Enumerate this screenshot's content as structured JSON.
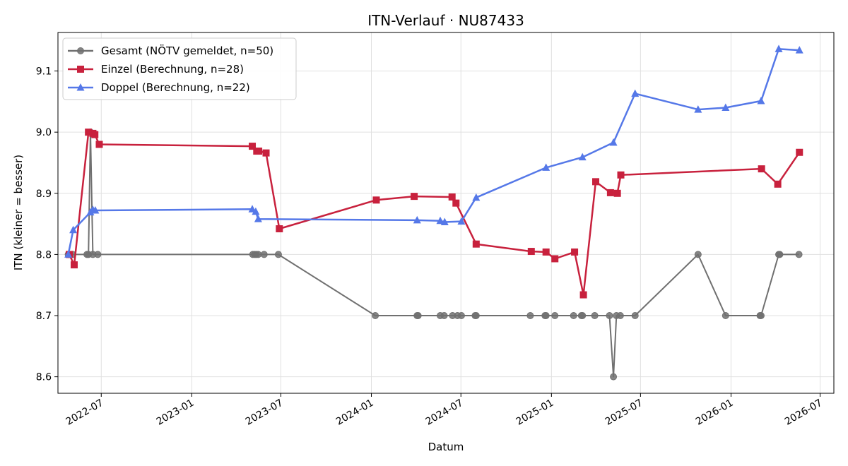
{
  "chart_data": {
    "type": "line",
    "title": "ITN-Verlauf · NU87433",
    "xlabel": "Datum",
    "ylabel": "ITN  (kleiner = besser)",
    "xlim": [
      "2022-04-04",
      "2026-07-29"
    ],
    "ylim": [
      8.573,
      9.163
    ],
    "x_ticks": [
      "2022-07-01",
      "2023-01-01",
      "2023-07-01",
      "2024-01-01",
      "2024-07-01",
      "2025-01-01",
      "2025-07-01",
      "2026-01-01",
      "2026-07-01"
    ],
    "x_tick_labels": [
      "2022-07",
      "2023-01",
      "2023-07",
      "2024-01",
      "2024-07",
      "2025-01",
      "2025-07",
      "2026-01",
      "2026-07"
    ],
    "y_ticks": [
      8.6,
      8.7,
      8.8,
      8.9,
      9.0,
      9.1
    ],
    "y_tick_labels": [
      "8.6",
      "8.7",
      "8.8",
      "8.9",
      "9.0",
      "9.1"
    ],
    "grid": true,
    "legend_position": "upper-left",
    "series": [
      {
        "name": "Gesamt (NÖTV gemeldet, n=50)",
        "color": "#707070",
        "marker": "circle",
        "points": [
          [
            "2022-04-25",
            8.8
          ],
          [
            "2022-05-04",
            8.8
          ],
          [
            "2022-06-02",
            8.8
          ],
          [
            "2022-06-05",
            8.8
          ],
          [
            "2022-06-09",
            9.0
          ],
          [
            "2022-06-14",
            8.8
          ],
          [
            "2022-06-24",
            8.8
          ],
          [
            "2023-05-05",
            8.8
          ],
          [
            "2023-05-09",
            8.8
          ],
          [
            "2023-05-12",
            8.8
          ],
          [
            "2023-05-16",
            8.8
          ],
          [
            "2023-05-28",
            8.8
          ],
          [
            "2023-06-26",
            8.8
          ],
          [
            "2024-01-09",
            8.7
          ],
          [
            "2024-04-03",
            8.7
          ],
          [
            "2024-04-05",
            8.7
          ],
          [
            "2024-05-20",
            8.7
          ],
          [
            "2024-05-28",
            8.7
          ],
          [
            "2024-06-14",
            8.7
          ],
          [
            "2024-06-24",
            8.7
          ],
          [
            "2024-07-02",
            8.7
          ],
          [
            "2024-07-30",
            8.7
          ],
          [
            "2024-08-01",
            8.7
          ],
          [
            "2024-11-19",
            8.7
          ],
          [
            "2024-12-19",
            8.7
          ],
          [
            "2024-12-21",
            8.7
          ],
          [
            "2025-01-08",
            8.7
          ],
          [
            "2025-02-15",
            8.7
          ],
          [
            "2025-03-03",
            8.7
          ],
          [
            "2025-03-05",
            8.7
          ],
          [
            "2025-03-30",
            8.7
          ],
          [
            "2025-04-29",
            8.7
          ],
          [
            "2025-05-07",
            8.6
          ],
          [
            "2025-05-13",
            8.7
          ],
          [
            "2025-05-21",
            8.7
          ],
          [
            "2025-06-20",
            8.7
          ],
          [
            "2025-10-26",
            8.8
          ],
          [
            "2025-12-21",
            8.7
          ],
          [
            "2026-03-01",
            8.7
          ],
          [
            "2026-03-03",
            8.7
          ],
          [
            "2026-04-08",
            8.8
          ],
          [
            "2026-04-10",
            8.8
          ],
          [
            "2026-05-19",
            8.8
          ]
        ]
      },
      {
        "name": "Einzel (Berechnung, n=28)",
        "color": "#c8213d",
        "marker": "square",
        "points": [
          [
            "2022-04-27",
            8.8
          ],
          [
            "2022-05-07",
            8.783
          ],
          [
            "2022-06-05",
            9.0
          ],
          [
            "2022-06-14",
            8.998
          ],
          [
            "2022-06-18",
            8.996
          ],
          [
            "2022-06-27",
            8.98
          ],
          [
            "2023-05-04",
            8.977
          ],
          [
            "2023-05-13",
            8.969
          ],
          [
            "2023-05-17",
            8.969
          ],
          [
            "2023-06-01",
            8.966
          ],
          [
            "2023-06-28",
            8.842
          ],
          [
            "2024-01-11",
            8.889
          ],
          [
            "2024-03-28",
            8.895
          ],
          [
            "2024-06-13",
            8.894
          ],
          [
            "2024-06-21",
            8.884
          ],
          [
            "2024-08-01",
            8.817
          ],
          [
            "2024-11-21",
            8.805
          ],
          [
            "2024-12-21",
            8.804
          ],
          [
            "2025-01-08",
            8.793
          ],
          [
            "2025-02-17",
            8.804
          ],
          [
            "2025-03-07",
            8.734
          ],
          [
            "2025-04-01",
            8.919
          ],
          [
            "2025-05-01",
            8.901
          ],
          [
            "2025-05-15",
            8.9
          ],
          [
            "2025-05-22",
            8.93
          ],
          [
            "2026-03-04",
            8.94
          ],
          [
            "2026-04-06",
            8.915
          ],
          [
            "2026-05-20",
            8.967
          ]
        ]
      },
      {
        "name": "Doppel (Berechnung, n=22)",
        "color": "#5578e8",
        "marker": "triangle",
        "points": [
          [
            "2022-04-25",
            8.8
          ],
          [
            "2022-05-05",
            8.84
          ],
          [
            "2022-06-09",
            8.869
          ],
          [
            "2022-06-14",
            8.873
          ],
          [
            "2022-06-19",
            8.872
          ],
          [
            "2023-05-04",
            8.874
          ],
          [
            "2023-05-11",
            8.87
          ],
          [
            "2023-05-16",
            8.858
          ],
          [
            "2024-04-03",
            8.856
          ],
          [
            "2024-05-20",
            8.855
          ],
          [
            "2024-05-29",
            8.853
          ],
          [
            "2024-07-02",
            8.854
          ],
          [
            "2024-08-01",
            8.893
          ],
          [
            "2024-12-21",
            8.942
          ],
          [
            "2025-03-05",
            8.959
          ],
          [
            "2025-05-07",
            8.983
          ],
          [
            "2025-06-20",
            9.063
          ],
          [
            "2025-10-26",
            9.037
          ],
          [
            "2025-12-21",
            9.04
          ],
          [
            "2026-03-03",
            9.051
          ],
          [
            "2026-04-08",
            9.136
          ],
          [
            "2026-05-20",
            9.134
          ]
        ]
      }
    ]
  }
}
